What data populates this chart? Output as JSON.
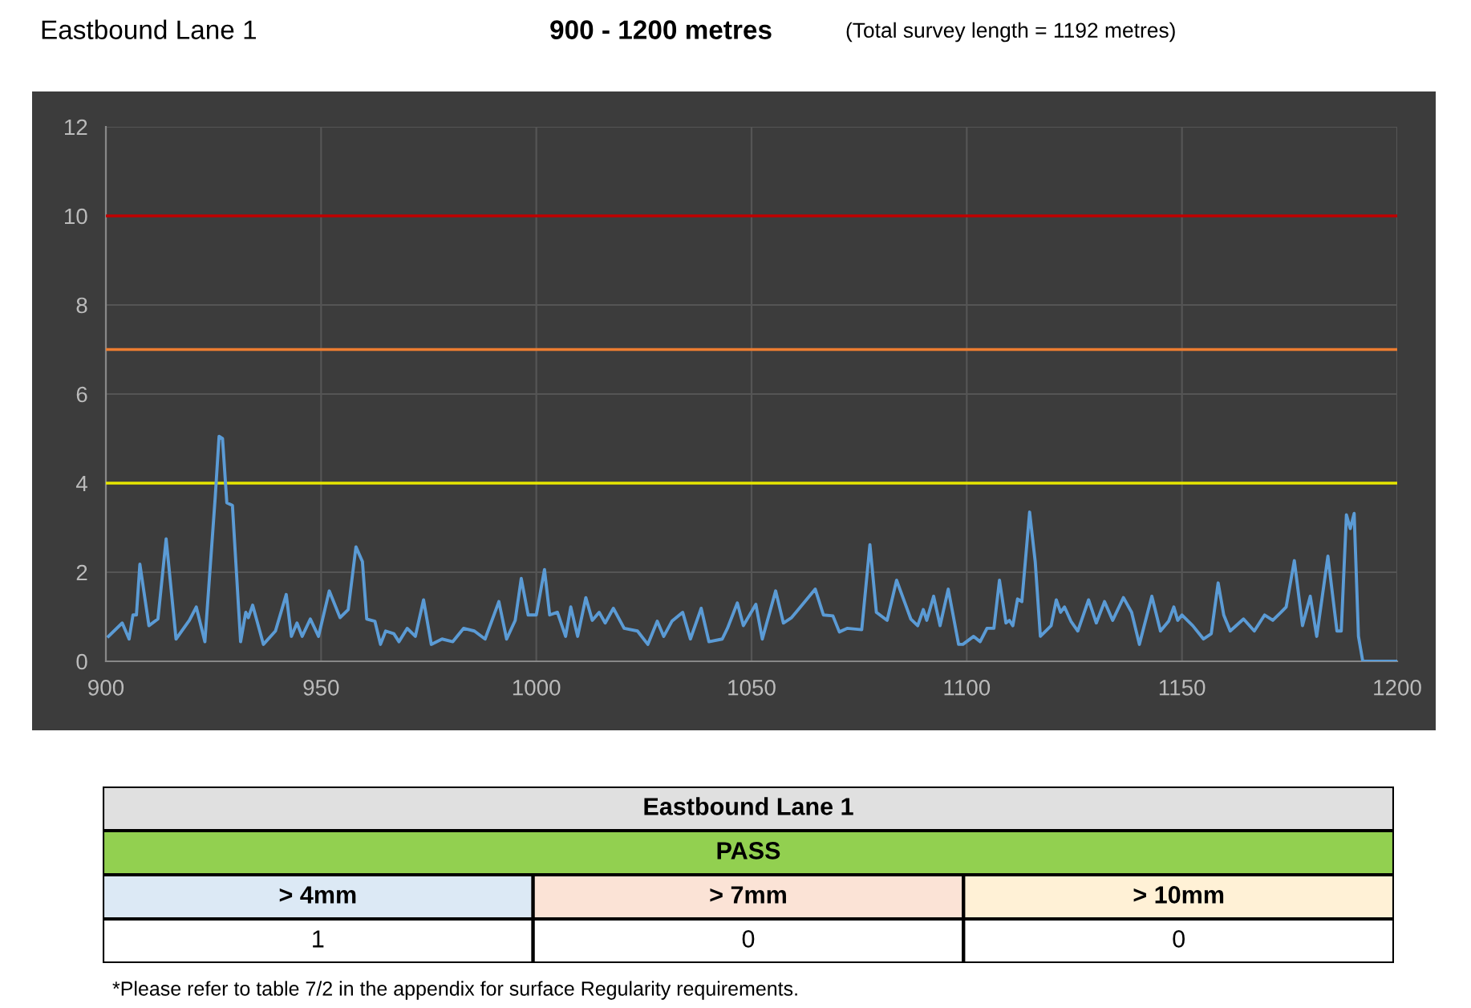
{
  "chart_data": [
    {
      "type": "line",
      "title": "Eastbound Lane 1",
      "subtitle": "900 - 1200 metres",
      "annotations": [
        "(Total survey length = 1192 metres)"
      ],
      "xlim": [
        900,
        1200
      ],
      "xticks": [
        900,
        950,
        1000,
        1050,
        1100,
        1150,
        1200
      ],
      "ylim": [
        0,
        12
      ],
      "yticks": [
        0,
        2,
        4,
        6,
        8,
        10,
        12
      ],
      "grid": true,
      "marker": "none",
      "line_style": "solid",
      "ref_lines": [
        {
          "axis": "y",
          "value": 10,
          "color": "#c00000"
        },
        {
          "axis": "y",
          "value": 7,
          "color": "#ed7d31"
        },
        {
          "axis": "y",
          "value": 4,
          "color": "#e6e600"
        }
      ],
      "series": [
        {
          "color": "#5b9bd5",
          "x": [
            900.6,
            903.8,
            905.4,
            906.3,
            907.1,
            907.9,
            910,
            912.1,
            914,
            916.3,
            919.4,
            921,
            923,
            925.4,
            926.3,
            927.1,
            928.1,
            929.4,
            931.3,
            932.5,
            933.1,
            934.1,
            936.6,
            939.4,
            941.9,
            943.1,
            944.4,
            945.6,
            947.5,
            949.4,
            951.9,
            954.4,
            956.3,
            958.1,
            959.6,
            960.6,
            962.5,
            963.8,
            965,
            966.9,
            968.1,
            970,
            971.9,
            973.8,
            975.6,
            978.1,
            980.6,
            983.1,
            985.6,
            988.1,
            991.3,
            993.1,
            995.1,
            996.5,
            998.1,
            1000,
            1001.9,
            1003.1,
            1004.9,
            1006.8,
            1008,
            1009.6,
            1011.5,
            1013,
            1014.6,
            1016,
            1017.9,
            1020.4,
            1023.5,
            1025.9,
            1028.1,
            1029.6,
            1031.5,
            1034,
            1035.8,
            1038.3,
            1040.1,
            1043.2,
            1044.4,
            1046.7,
            1048.1,
            1051,
            1052.5,
            1055.6,
            1057.4,
            1059.3,
            1064.8,
            1066.7,
            1068.9,
            1070.4,
            1072.2,
            1075.6,
            1077.5,
            1079,
            1081.5,
            1083.7,
            1087,
            1088.6,
            1089.9,
            1090.7,
            1092.3,
            1093.8,
            1095.7,
            1098.1,
            1099.1,
            1101.6,
            1103.1,
            1104.7,
            1106.3,
            1107.6,
            1109.1,
            1109.9,
            1110.7,
            1111.8,
            1112.8,
            1114.6,
            1115.9,
            1117.1,
            1119.6,
            1120.8,
            1121.8,
            1122.7,
            1124.2,
            1125.8,
            1128.3,
            1130.1,
            1132,
            1133.9,
            1136.4,
            1138.3,
            1140.1,
            1143,
            1145,
            1146.9,
            1148.1,
            1149,
            1150,
            1152.5,
            1155,
            1156.8,
            1158.4,
            1159.7,
            1161.2,
            1164.3,
            1166.8,
            1169.2,
            1171.1,
            1173,
            1174.2,
            1176.1,
            1178,
            1179.8,
            1181.3,
            1183.9,
            1186,
            1187,
            1188.2,
            1189.1,
            1190,
            1191,
            1192,
            1200
          ],
          "values": [
            0.56,
            0.86,
            0.5,
            1.04,
            1.04,
            2.18,
            0.8,
            0.95,
            2.75,
            0.5,
            0.92,
            1.22,
            0.44,
            3.68,
            5.05,
            5.0,
            3.56,
            3.5,
            0.44,
            1.1,
            0.98,
            1.26,
            0.38,
            0.68,
            1.5,
            0.56,
            0.86,
            0.56,
            0.95,
            0.56,
            1.58,
            0.98,
            1.16,
            2.57,
            2.24,
            0.95,
            0.9,
            0.38,
            0.68,
            0.62,
            0.44,
            0.74,
            0.56,
            1.38,
            0.38,
            0.5,
            0.44,
            0.74,
            0.68,
            0.5,
            1.34,
            0.5,
            0.92,
            1.86,
            1.04,
            1.04,
            2.06,
            1.04,
            1.1,
            0.56,
            1.22,
            0.56,
            1.43,
            0.92,
            1.1,
            0.86,
            1.19,
            0.74,
            0.68,
            0.38,
            0.9,
            0.56,
            0.9,
            1.1,
            0.5,
            1.19,
            0.44,
            0.5,
            0.74,
            1.31,
            0.8,
            1.28,
            0.5,
            1.58,
            0.86,
            0.98,
            1.62,
            1.04,
            1.02,
            0.66,
            0.74,
            0.71,
            2.62,
            1.1,
            0.92,
            1.82,
            0.95,
            0.8,
            1.16,
            0.92,
            1.46,
            0.8,
            1.62,
            0.38,
            0.38,
            0.56,
            0.44,
            0.74,
            0.74,
            1.82,
            0.86,
            0.92,
            0.8,
            1.4,
            1.34,
            3.35,
            2.24,
            0.56,
            0.8,
            1.38,
            1.1,
            1.22,
            0.9,
            0.68,
            1.38,
            0.86,
            1.34,
            0.92,
            1.43,
            1.1,
            0.38,
            1.46,
            0.68,
            0.9,
            1.22,
            0.92,
            1.04,
            0.8,
            0.5,
            0.62,
            1.76,
            1.04,
            0.68,
            0.95,
            0.68,
            1.04,
            0.92,
            1.1,
            1.22,
            2.26,
            0.8,
            1.46,
            0.56,
            2.36,
            0.68,
            0.68,
            3.29,
            2.98,
            3.32,
            0.56,
            0,
            0
          ]
        }
      ]
    },
    {
      "type": "other",
      "title": "Eastbound Lane 1",
      "subtitle": "PASS",
      "categories": [
        "> 4mm",
        "> 7mm",
        "> 10mm"
      ],
      "values": [
        1,
        0,
        0
      ],
      "data_labels": true,
      "annotations": [
        "*Please refer to table 7/2 in the appendix for surface Regularity requirements."
      ]
    }
  ]
}
